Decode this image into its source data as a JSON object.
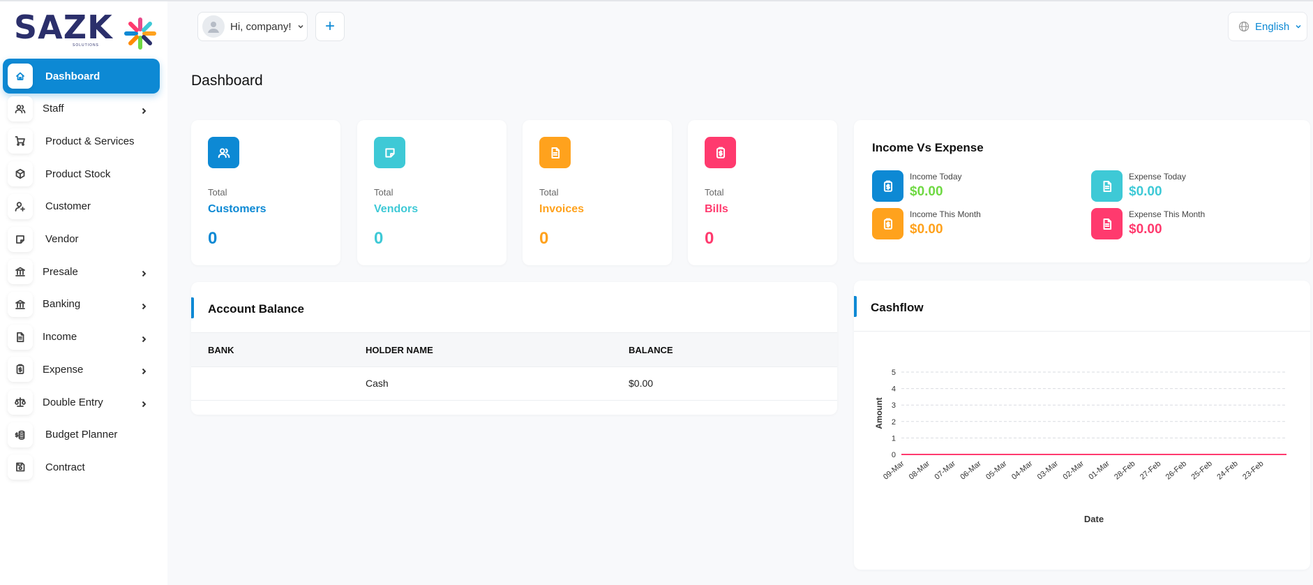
{
  "logo": {
    "text": "SAZK",
    "sub": "SOLUTIONS"
  },
  "header": {
    "greeting": "Hi, company!",
    "add_label": "+",
    "language": "English"
  },
  "page_title": "Dashboard",
  "sidebar": {
    "items": [
      {
        "label": "Dashboard",
        "icon": "home-icon",
        "active": true,
        "has_children": false
      },
      {
        "label": "Staff",
        "icon": "users-icon",
        "active": false,
        "has_children": true
      },
      {
        "label": "Product & Services",
        "icon": "cart-icon",
        "active": false,
        "has_children": false
      },
      {
        "label": "Product Stock",
        "icon": "box-icon",
        "active": false,
        "has_children": false
      },
      {
        "label": "Customer",
        "icon": "user-plus-icon",
        "active": false,
        "has_children": false
      },
      {
        "label": "Vendor",
        "icon": "note-icon",
        "active": false,
        "has_children": false
      },
      {
        "label": "Presale",
        "icon": "building-bank-icon",
        "active": false,
        "has_children": true
      },
      {
        "label": "Banking",
        "icon": "building-bank-icon",
        "active": false,
        "has_children": true
      },
      {
        "label": "Income",
        "icon": "file-invoice-icon",
        "active": false,
        "has_children": true
      },
      {
        "label": "Expense",
        "icon": "report-money-icon",
        "active": false,
        "has_children": true
      },
      {
        "label": "Double Entry",
        "icon": "scale-icon",
        "active": false,
        "has_children": true
      },
      {
        "label": "Budget Planner",
        "icon": "coins-icon",
        "active": false,
        "has_children": false
      },
      {
        "label": "Contract",
        "icon": "device-floppy-icon",
        "active": false,
        "has_children": false
      }
    ]
  },
  "stats": [
    {
      "total": "Total",
      "name": "Customers",
      "value": "0",
      "color": "#0d89d4",
      "icon": "users-icon"
    },
    {
      "total": "Total",
      "name": "Vendors",
      "value": "0",
      "color": "#3ec9d6",
      "icon": "note-icon"
    },
    {
      "total": "Total",
      "name": "Invoices",
      "value": "0",
      "color": "#ffa21d",
      "icon": "file-invoice-icon"
    },
    {
      "total": "Total",
      "name": "Bills",
      "value": "0",
      "color": "#ff3a6e",
      "icon": "report-money-icon"
    }
  ],
  "income_vs_expense": {
    "title": "Income Vs Expense",
    "items": [
      {
        "label": "Income Today",
        "value": "$0.00",
        "color": "#0d89d4",
        "value_color": "#6fd943",
        "icon": "report-money-icon"
      },
      {
        "label": "Expense Today",
        "value": "$0.00",
        "color": "#3ec9d6",
        "value_color": "#3ec9d6",
        "icon": "file-invoice-icon"
      },
      {
        "label": "Income This Month",
        "value": "$0.00",
        "color": "#ffa21d",
        "value_color": "#ffa21d",
        "icon": "report-money-icon"
      },
      {
        "label": "Expense This Month",
        "value": "$0.00",
        "color": "#ff3a6e",
        "value_color": "#ff3a6e",
        "icon": "file-invoice-icon"
      }
    ]
  },
  "account_balance": {
    "title": "Account Balance",
    "columns": [
      "BANK",
      "HOLDER NAME",
      "BALANCE"
    ],
    "rows": [
      [
        "",
        "Cash",
        "$0.00"
      ]
    ]
  },
  "cashflow": {
    "title": "Cashflow"
  },
  "chart_data": {
    "type": "line",
    "title": "",
    "xlabel": "Date",
    "ylabel": "Amount",
    "categories": [
      "09-Mar",
      "08-Mar",
      "07-Mar",
      "06-Mar",
      "05-Mar",
      "04-Mar",
      "03-Mar",
      "02-Mar",
      "01-Mar",
      "28-Feb",
      "27-Feb",
      "26-Feb",
      "25-Feb",
      "24-Feb",
      "23-Feb"
    ],
    "series": [
      {
        "values": [
          0,
          0,
          0,
          0,
          0,
          0,
          0,
          0,
          0,
          0,
          0,
          0,
          0,
          0,
          0
        ],
        "color": "#ff3a6e"
      }
    ],
    "yticks": [
      0,
      1,
      2,
      3,
      4,
      5
    ],
    "ylim": [
      0,
      5
    ],
    "grid": true
  },
  "colors": {
    "primary": "#0d89d4",
    "brand_navy": "#2b2f6b"
  }
}
